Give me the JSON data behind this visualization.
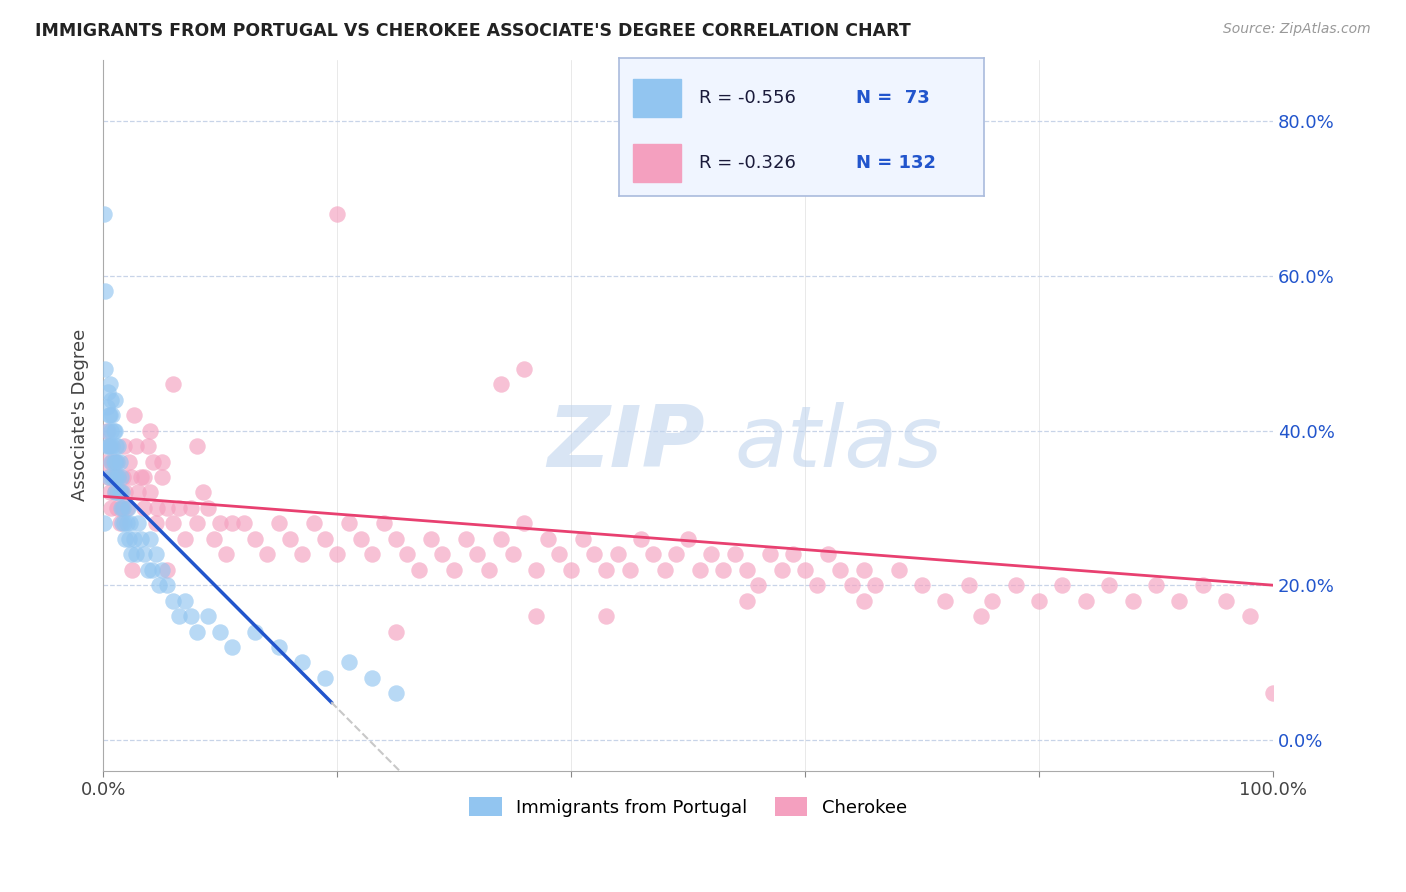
{
  "title": "IMMIGRANTS FROM PORTUGAL VS CHEROKEE ASSOCIATE'S DEGREE CORRELATION CHART",
  "source": "Source: ZipAtlas.com",
  "ylabel": "Associate's Degree",
  "right_yticks": [
    0.0,
    0.2,
    0.4,
    0.6,
    0.8
  ],
  "right_yticklabels": [
    "0.0%",
    "20.0%",
    "40.0%",
    "60.0%",
    "80.0%"
  ],
  "xmin": 0.0,
  "xmax": 1.0,
  "ymin": -0.04,
  "ymax": 0.88,
  "series1_color": "#92c5f0",
  "series2_color": "#f4a0bf",
  "trendline1_color": "#2255cc",
  "trendline2_color": "#e84070",
  "trendline_extend_color": "#c8c8c8",
  "background_color": "#ffffff",
  "grid_color": "#c8d4e8",
  "title_color": "#222222",
  "right_axis_color": "#2255cc",
  "watermark_main_color": "#b8cce8",
  "legend_bg": "#f0f5ff",
  "legend_border": "#aabbdd",
  "portugal_x": [
    0.001,
    0.002,
    0.002,
    0.003,
    0.003,
    0.004,
    0.004,
    0.005,
    0.005,
    0.005,
    0.006,
    0.006,
    0.006,
    0.007,
    0.007,
    0.007,
    0.008,
    0.008,
    0.008,
    0.009,
    0.009,
    0.01,
    0.01,
    0.01,
    0.01,
    0.011,
    0.011,
    0.012,
    0.012,
    0.013,
    0.013,
    0.014,
    0.014,
    0.015,
    0.015,
    0.016,
    0.016,
    0.017,
    0.018,
    0.019,
    0.02,
    0.021,
    0.022,
    0.023,
    0.024,
    0.026,
    0.028,
    0.03,
    0.032,
    0.035,
    0.038,
    0.04,
    0.042,
    0.045,
    0.048,
    0.05,
    0.055,
    0.06,
    0.065,
    0.07,
    0.075,
    0.08,
    0.09,
    0.1,
    0.11,
    0.13,
    0.15,
    0.17,
    0.19,
    0.21,
    0.23,
    0.25,
    0.001
  ],
  "portugal_y": [
    0.68,
    0.58,
    0.48,
    0.43,
    0.38,
    0.45,
    0.4,
    0.42,
    0.38,
    0.34,
    0.46,
    0.42,
    0.38,
    0.44,
    0.4,
    0.36,
    0.42,
    0.38,
    0.34,
    0.4,
    0.36,
    0.44,
    0.4,
    0.36,
    0.32,
    0.38,
    0.34,
    0.36,
    0.32,
    0.38,
    0.34,
    0.36,
    0.32,
    0.34,
    0.3,
    0.32,
    0.28,
    0.3,
    0.28,
    0.26,
    0.28,
    0.3,
    0.26,
    0.28,
    0.24,
    0.26,
    0.24,
    0.28,
    0.26,
    0.24,
    0.22,
    0.26,
    0.22,
    0.24,
    0.2,
    0.22,
    0.2,
    0.18,
    0.16,
    0.18,
    0.16,
    0.14,
    0.16,
    0.14,
    0.12,
    0.14,
    0.12,
    0.1,
    0.08,
    0.1,
    0.08,
    0.06,
    0.28
  ],
  "cherokee_x": [
    0.002,
    0.003,
    0.004,
    0.005,
    0.006,
    0.007,
    0.008,
    0.009,
    0.01,
    0.011,
    0.012,
    0.013,
    0.014,
    0.015,
    0.016,
    0.017,
    0.018,
    0.019,
    0.02,
    0.022,
    0.024,
    0.026,
    0.028,
    0.03,
    0.032,
    0.035,
    0.038,
    0.04,
    0.043,
    0.046,
    0.05,
    0.055,
    0.06,
    0.065,
    0.07,
    0.075,
    0.08,
    0.085,
    0.09,
    0.095,
    0.1,
    0.105,
    0.11,
    0.12,
    0.13,
    0.14,
    0.15,
    0.16,
    0.17,
    0.18,
    0.19,
    0.2,
    0.21,
    0.22,
    0.23,
    0.24,
    0.25,
    0.26,
    0.27,
    0.28,
    0.29,
    0.3,
    0.31,
    0.32,
    0.33,
    0.34,
    0.35,
    0.36,
    0.37,
    0.38,
    0.39,
    0.4,
    0.41,
    0.42,
    0.43,
    0.44,
    0.45,
    0.46,
    0.47,
    0.48,
    0.49,
    0.5,
    0.51,
    0.52,
    0.53,
    0.54,
    0.55,
    0.56,
    0.57,
    0.58,
    0.59,
    0.6,
    0.61,
    0.62,
    0.63,
    0.64,
    0.65,
    0.66,
    0.68,
    0.7,
    0.72,
    0.74,
    0.76,
    0.78,
    0.8,
    0.82,
    0.84,
    0.86,
    0.88,
    0.9,
    0.92,
    0.94,
    0.96,
    0.98,
    1.0,
    0.34,
    0.36,
    0.2,
    0.08,
    0.05,
    0.025,
    0.04,
    0.06,
    0.035,
    0.045,
    0.055,
    0.25,
    0.37,
    0.43,
    0.55,
    0.65,
    0.75
  ],
  "cherokee_y": [
    0.36,
    0.4,
    0.34,
    0.38,
    0.32,
    0.3,
    0.36,
    0.34,
    0.32,
    0.36,
    0.3,
    0.34,
    0.28,
    0.32,
    0.3,
    0.34,
    0.38,
    0.32,
    0.3,
    0.36,
    0.34,
    0.42,
    0.38,
    0.32,
    0.34,
    0.3,
    0.38,
    0.32,
    0.36,
    0.3,
    0.34,
    0.3,
    0.28,
    0.3,
    0.26,
    0.3,
    0.28,
    0.32,
    0.3,
    0.26,
    0.28,
    0.24,
    0.28,
    0.28,
    0.26,
    0.24,
    0.28,
    0.26,
    0.24,
    0.28,
    0.26,
    0.24,
    0.28,
    0.26,
    0.24,
    0.28,
    0.26,
    0.24,
    0.22,
    0.26,
    0.24,
    0.22,
    0.26,
    0.24,
    0.22,
    0.26,
    0.24,
    0.28,
    0.22,
    0.26,
    0.24,
    0.22,
    0.26,
    0.24,
    0.22,
    0.24,
    0.22,
    0.26,
    0.24,
    0.22,
    0.24,
    0.26,
    0.22,
    0.24,
    0.22,
    0.24,
    0.22,
    0.2,
    0.24,
    0.22,
    0.24,
    0.22,
    0.2,
    0.24,
    0.22,
    0.2,
    0.22,
    0.2,
    0.22,
    0.2,
    0.18,
    0.2,
    0.18,
    0.2,
    0.18,
    0.2,
    0.18,
    0.2,
    0.18,
    0.2,
    0.18,
    0.2,
    0.18,
    0.16,
    0.06,
    0.46,
    0.48,
    0.68,
    0.38,
    0.36,
    0.22,
    0.4,
    0.46,
    0.34,
    0.28,
    0.22,
    0.14,
    0.16,
    0.16,
    0.18,
    0.18,
    0.16
  ],
  "trendline1_x0": 0.0,
  "trendline1_y0": 0.345,
  "trendline1_slope": -1.52,
  "trendline1_xend_solid": 0.195,
  "trendline1_xend_dash": 0.32,
  "trendline2_x0": 0.0,
  "trendline2_y0": 0.315,
  "trendline2_slope": -0.115,
  "trendline2_xend": 1.0
}
